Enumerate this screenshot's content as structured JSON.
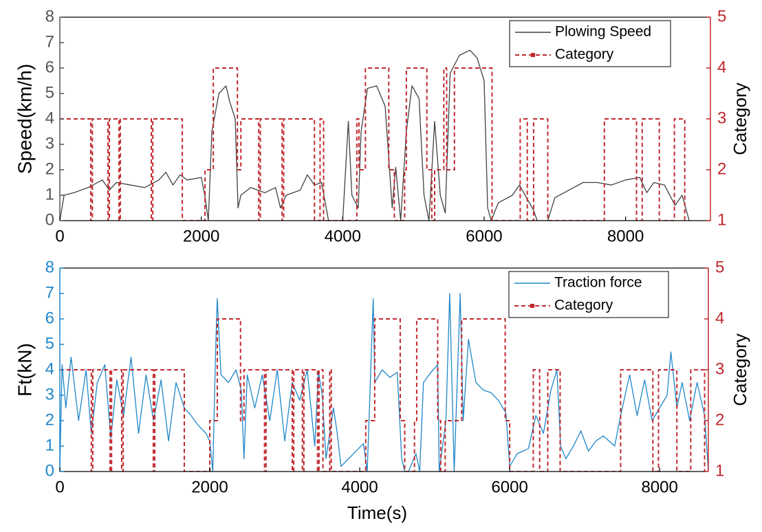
{
  "chart_data": [
    {
      "type": "line",
      "ylabel": "Speed(km/h)",
      "y2label": "Category",
      "ycolor": "#555555",
      "y2color": "#c0282d",
      "xlim": [
        0,
        9200
      ],
      "xticks": [
        0,
        2000,
        4000,
        6000,
        8000
      ],
      "ylim": [
        0,
        8
      ],
      "yticks": [
        0,
        1,
        2,
        3,
        4,
        5,
        6,
        7,
        8
      ],
      "y2lim": [
        1,
        5
      ],
      "y2ticks": [
        1,
        2,
        3,
        4,
        5
      ],
      "legend": "upper right",
      "series": [
        {
          "name": "Plowing Speed",
          "color": "#404040",
          "style": "solid",
          "x": [
            0,
            60,
            200,
            400,
            600,
            700,
            800,
            1000,
            1200,
            1400,
            1500,
            1600,
            1700,
            1800,
            2000,
            2050,
            2100,
            2150,
            2250,
            2350,
            2400,
            2480,
            2520,
            2560,
            2700,
            2900,
            3050,
            3120,
            3200,
            3400,
            3500,
            3600,
            3700,
            3800,
            4000,
            4080,
            4130,
            4220,
            4260,
            4350,
            4480,
            4600,
            4700,
            4750,
            4820,
            4900,
            4980,
            5080,
            5150,
            5220,
            5300,
            5380,
            5450,
            5520,
            5650,
            5800,
            5900,
            6000,
            6050,
            6100,
            6200,
            6400,
            6500,
            6600,
            6700,
            6750,
            6900,
            7000,
            7200,
            7400,
            7600,
            7800,
            8000,
            8200,
            8300,
            8400,
            8550,
            8700,
            8800,
            8900
          ],
          "values": [
            0,
            1.0,
            1.1,
            1.3,
            1.6,
            1.2,
            1.5,
            1.4,
            1.3,
            1.6,
            1.9,
            1.4,
            1.8,
            1.6,
            1.7,
            1.0,
            0,
            3.5,
            5.0,
            5.3,
            4.7,
            4.0,
            0.5,
            1.0,
            1.3,
            1.1,
            1.3,
            0.5,
            1.0,
            1.2,
            1.8,
            1.4,
            1.5,
            0,
            0,
            3.9,
            1.0,
            0.5,
            3.5,
            5.2,
            5.3,
            4.5,
            0.5,
            2.1,
            0,
            3.5,
            5.3,
            4.8,
            1.0,
            0,
            3.9,
            1.0,
            0.3,
            5.8,
            6.5,
            6.7,
            6.4,
            5.5,
            0.5,
            0,
            0.7,
            1.0,
            1.4,
            0.9,
            0.4,
            0,
            0,
            0.9,
            1.2,
            1.5,
            1.5,
            1.4,
            1.6,
            1.7,
            1.1,
            1.5,
            1.4,
            0.6,
            1.0,
            0
          ]
        },
        {
          "name": "Category",
          "color": "#c0282d",
          "style": "dashed",
          "axis": "y2",
          "drawstyle": "steps-post",
          "x": [
            0,
            438,
            460,
            681,
            700,
            837,
            855,
            1294,
            1315,
            1732,
            2053,
            2170,
            2511,
            2560,
            2813,
            2835,
            3143,
            3165,
            3601,
            3680,
            3730,
            4200,
            4230,
            4321,
            4652,
            4730,
            4876,
            4900,
            5190,
            5260,
            5300,
            5430,
            5470,
            5580,
            6112,
            6510,
            6610,
            6700,
            6900,
            7700,
            8155,
            8235,
            8477,
            8691,
            8837
          ],
          "values": [
            3,
            1,
            3,
            1,
            3,
            1,
            3,
            1,
            3,
            1,
            2,
            4,
            2,
            3,
            1,
            3,
            1,
            3,
            1,
            3,
            1,
            3,
            2,
            4,
            2,
            1,
            2,
            4,
            2,
            1,
            2,
            4,
            2,
            4,
            1,
            3,
            1,
            3,
            1,
            3,
            1,
            3,
            1,
            3,
            1
          ]
        }
      ]
    },
    {
      "type": "line",
      "ylabel": "Ft(kN)",
      "y2label": "Category",
      "xlabel": "Time(s)",
      "ycolor": "#1f86c8",
      "y2color": "#c0282d",
      "xlim": [
        0,
        8650
      ],
      "xticks": [
        0,
        2000,
        4000,
        6000,
        8000
      ],
      "ylim": [
        0,
        8
      ],
      "yticks": [
        0,
        1,
        2,
        3,
        4,
        5,
        6,
        7,
        8
      ],
      "y2lim": [
        1,
        5
      ],
      "y2ticks": [
        1,
        2,
        3,
        4,
        5
      ],
      "legend": "upper right",
      "series": [
        {
          "name": "Traction force",
          "color": "#1f86c8",
          "style": "solid",
          "x": [
            0,
            30,
            80,
            150,
            250,
            350,
            420,
            500,
            600,
            680,
            760,
            850,
            950,
            1050,
            1150,
            1250,
            1350,
            1450,
            1550,
            1660,
            1750,
            1850,
            1950,
            2000,
            2040,
            2080,
            2100,
            2150,
            2250,
            2350,
            2420,
            2456,
            2500,
            2600,
            2700,
            2800,
            2900,
            3000,
            3100,
            3200,
            3300,
            3400,
            3450,
            3500,
            3550,
            3650,
            3700,
            3750,
            3850,
            3950,
            4050,
            4100,
            4180,
            4200,
            4300,
            4400,
            4500,
            4560,
            4600,
            4650,
            4750,
            4800,
            4850,
            4950,
            5040,
            5060,
            5150,
            5200,
            5260,
            5340,
            5380,
            5450,
            5550,
            5650,
            5750,
            5850,
            5950,
            6000,
            6100,
            6250,
            6350,
            6450,
            6550,
            6630,
            6680,
            6750,
            6850,
            6950,
            7050,
            7150,
            7250,
            7400,
            7480,
            7600,
            7700,
            7800,
            7900,
            8000,
            8100,
            8150,
            8230,
            8300,
            8400,
            8500,
            8600,
            8650
          ],
          "values": [
            0,
            4.2,
            2.5,
            4.5,
            2.0,
            4.0,
            1.5,
            3.5,
            4.2,
            1.3,
            3.6,
            2.2,
            4.5,
            1.5,
            3.8,
            2.0,
            3.6,
            1.2,
            3.5,
            2.5,
            2.2,
            1.8,
            1.5,
            1.2,
            0,
            5.0,
            6.8,
            3.8,
            3.5,
            4.0,
            3.2,
            0.5,
            3.8,
            2.5,
            3.8,
            2.0,
            4.0,
            1.2,
            3.5,
            2.8,
            4.0,
            1.0,
            3.9,
            3.0,
            0.5,
            2.5,
            1.5,
            0.2,
            0.5,
            0.8,
            1.1,
            0,
            6.8,
            3.5,
            4.0,
            3.7,
            3.9,
            0.5,
            0,
            0,
            0.7,
            0,
            3.5,
            3.9,
            4.2,
            0,
            2.0,
            7.0,
            0,
            7.0,
            2.0,
            5.2,
            3.5,
            3.2,
            3.1,
            2.8,
            2.3,
            0.2,
            0.7,
            0.9,
            2.2,
            1.5,
            3.2,
            4.0,
            1.0,
            0.5,
            1.0,
            1.6,
            0.8,
            1.2,
            1.4,
            1.0,
            2.2,
            3.8,
            2.2,
            3.6,
            2.0,
            2.5,
            3.0,
            4.7,
            2.5,
            3.5,
            2.0,
            3.5,
            2.2,
            0
          ]
        },
        {
          "name": "Category",
          "color": "#c0282d",
          "style": "dashed",
          "axis": "y2",
          "drawstyle": "steps-post",
          "x": [
            0,
            420,
            440,
            670,
            690,
            825,
            845,
            1247,
            1267,
            1660,
            2000,
            2100,
            2410,
            2456,
            2730,
            2750,
            3100,
            3120,
            3235,
            3255,
            3437,
            3457,
            3510,
            3600,
            3620,
            4080,
            4200,
            4540,
            4600,
            4730,
            4760,
            5040,
            5080,
            5140,
            5360,
            5940,
            6000,
            6315,
            6400,
            6508,
            6673,
            7480,
            7910,
            7985,
            8230,
            8415,
            8600
          ],
          "values": [
            3,
            1,
            3,
            1,
            3,
            1,
            3,
            1,
            3,
            1,
            2,
            4,
            2,
            3,
            1,
            3,
            1,
            3,
            1,
            3,
            1,
            3,
            1,
            3,
            1,
            2,
            4,
            2,
            1,
            2,
            4,
            2,
            1,
            2,
            4,
            2,
            1,
            3,
            1,
            3,
            1,
            3,
            1,
            3,
            1,
            3,
            1
          ]
        }
      ]
    }
  ]
}
